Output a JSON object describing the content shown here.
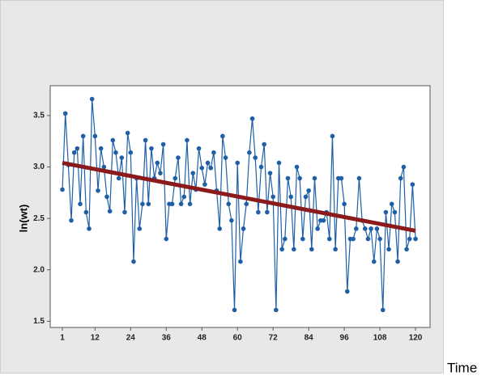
{
  "chart_data": {
    "type": "line",
    "ylabel": "ln(wt)",
    "xlabel": "Time",
    "x": [
      1,
      2,
      3,
      4,
      5,
      6,
      7,
      8,
      9,
      10,
      11,
      12,
      13,
      14,
      15,
      16,
      17,
      18,
      19,
      20,
      21,
      22,
      23,
      24,
      25,
      26,
      27,
      28,
      29,
      30,
      31,
      32,
      33,
      34,
      35,
      36,
      37,
      38,
      39,
      40,
      41,
      42,
      43,
      44,
      45,
      46,
      47,
      48,
      49,
      50,
      51,
      52,
      53,
      54,
      55,
      56,
      57,
      58,
      59,
      60,
      61,
      62,
      63,
      64,
      65,
      66,
      67,
      68,
      69,
      70,
      71,
      72,
      73,
      74,
      75,
      76,
      77,
      78,
      79,
      80,
      81,
      82,
      83,
      84,
      85,
      86,
      87,
      88,
      89,
      90,
      91,
      92,
      93,
      94,
      95,
      96,
      97,
      98,
      99,
      100,
      101,
      102,
      103,
      104,
      105,
      106,
      107,
      108,
      109,
      110,
      111,
      112,
      113,
      114,
      115,
      116,
      117,
      118,
      119,
      120
    ],
    "series": [
      {
        "color": "#1f5fa6",
        "markers": true,
        "values": [
          2.78,
          3.52,
          3.02,
          2.48,
          3.14,
          3.18,
          2.64,
          3.3,
          2.56,
          2.4,
          3.66,
          3.3,
          2.77,
          3.18,
          3.0,
          2.71,
          2.57,
          3.26,
          3.14,
          2.89,
          3.09,
          2.56,
          3.33,
          3.14,
          2.08,
          2.89,
          2.4,
          2.64,
          3.26,
          2.64,
          3.18,
          2.89,
          3.04,
          2.94,
          3.22,
          2.3,
          2.64,
          2.64,
          2.89,
          3.09,
          2.64,
          2.71,
          3.26,
          2.64,
          2.94,
          2.78,
          3.18,
          2.99,
          2.83,
          3.04,
          2.99,
          3.14,
          2.77,
          2.4,
          3.3,
          3.09,
          2.64,
          2.48,
          1.61,
          3.04,
          2.08,
          2.4,
          2.64,
          3.14,
          3.47,
          3.09,
          2.56,
          3.0,
          3.22,
          2.56,
          2.94,
          2.71,
          1.61,
          3.04,
          2.2,
          2.3,
          2.89,
          2.71,
          2.2,
          3.0,
          2.89,
          2.3,
          2.71,
          2.77,
          2.2,
          2.89,
          2.4,
          2.48,
          2.48,
          2.56,
          2.3,
          3.3,
          2.2,
          2.89,
          2.89,
          2.64,
          1.79,
          2.3,
          2.3,
          2.4,
          2.89,
          2.48,
          2.4,
          2.3,
          2.4,
          2.08,
          2.4,
          2.3,
          1.61,
          2.56,
          2.2,
          2.64,
          2.56,
          2.08,
          2.89,
          3.0,
          2.2,
          2.3,
          2.83,
          2.3
        ]
      },
      {
        "color": "#8b1a1a",
        "markers": false,
        "x": [
          1,
          120
        ],
        "values": [
          3.04,
          2.38
        ]
      }
    ],
    "xlim": [
      -3.1,
      124.9
    ],
    "ylim": [
      1.44,
      3.79
    ],
    "xticks": [
      1,
      12,
      24,
      36,
      48,
      60,
      72,
      84,
      96,
      108,
      120
    ],
    "yticks": [
      1.5,
      {
        "value": 2,
        "label": "2.0"
      },
      2.5,
      {
        "value": 3,
        "label": "3.0"
      },
      3.5
    ]
  }
}
